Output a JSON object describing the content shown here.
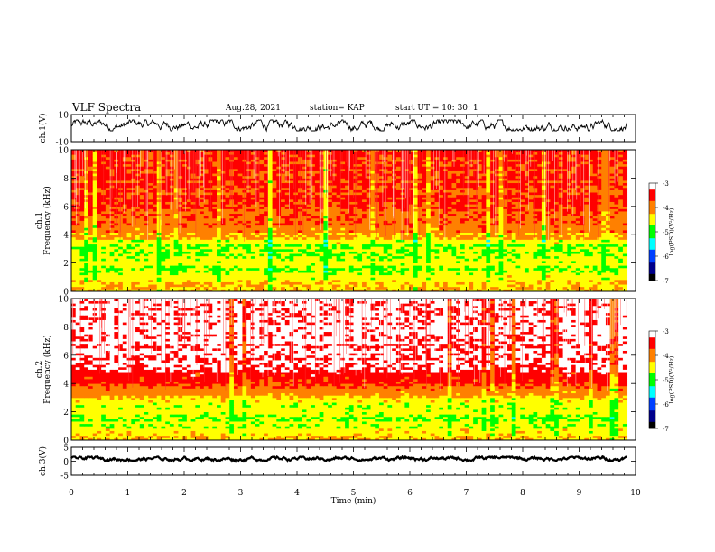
{
  "header": {
    "title": "VLF Spectra",
    "date": "Aug.28, 2021",
    "station": "station= KAP",
    "start": "start UT =   10: 30: 1"
  },
  "chart_data": [
    {
      "type": "line",
      "panel": "ch1-waveform",
      "ylabel": "ch.1(V)",
      "ylim": [
        -10,
        10
      ],
      "yticks": [
        "10",
        "-10"
      ],
      "xlim": [
        0,
        10
      ],
      "x_end": 9.85,
      "series": [
        {
          "name": "",
          "amplitude_range": [
            -2,
            6
          ],
          "mean": 2,
          "color": "#000000"
        }
      ]
    },
    {
      "type": "heatmap",
      "panel": "ch1-spectrogram",
      "ylabel": "ch.1\nFrequency (kHz)",
      "ylim": [
        0,
        10
      ],
      "yticks": [
        "0",
        "2",
        "4",
        "6",
        "8",
        "10"
      ],
      "xlim": [
        0,
        10
      ],
      "x_end": 9.85,
      "zlim": [
        -7,
        -3
      ],
      "colorbar_label": "log(PSD)(V²/Hz)",
      "colorbar_ticks": [
        "-3",
        "-4",
        "-5",
        "-6",
        "-7"
      ],
      "profile": [
        {
          "f": 0.0,
          "level": -4.4
        },
        {
          "f": 0.5,
          "level": -4.3
        },
        {
          "f": 1.0,
          "level": -4.5
        },
        {
          "f": 1.5,
          "level": -4.7
        },
        {
          "f": 2.0,
          "level": -4.5
        },
        {
          "f": 2.5,
          "level": -4.6
        },
        {
          "f": 3.0,
          "level": -4.8
        },
        {
          "f": 3.5,
          "level": -4.5
        },
        {
          "f": 4.0,
          "level": -4.1
        },
        {
          "f": 5.0,
          "level": -3.8
        },
        {
          "f": 6.0,
          "level": -3.7
        },
        {
          "f": 8.0,
          "level": -3.7
        },
        {
          "f": 10.0,
          "level": -3.7
        }
      ]
    },
    {
      "type": "heatmap",
      "panel": "ch2-spectrogram",
      "ylabel": "ch.2\nFrequency (kHz)",
      "ylim": [
        0,
        10
      ],
      "yticks": [
        "0",
        "2",
        "4",
        "6",
        "8",
        "10"
      ],
      "xlim": [
        0,
        10
      ],
      "x_end": 9.85,
      "zlim": [
        -7,
        -3
      ],
      "colorbar_label": "log(PSD)(V²/Hz)",
      "colorbar_ticks": [
        "-3",
        "-4",
        "-5",
        "-6",
        "-7"
      ],
      "profile": [
        {
          "f": 0.0,
          "level": -4.3
        },
        {
          "f": 0.5,
          "level": -4.4
        },
        {
          "f": 1.0,
          "level": -4.6
        },
        {
          "f": 1.5,
          "level": -4.7
        },
        {
          "f": 2.0,
          "level": -4.6
        },
        {
          "f": 2.5,
          "level": -4.6
        },
        {
          "f": 3.0,
          "level": -4.4
        },
        {
          "f": 3.5,
          "level": -3.9
        },
        {
          "f": 4.0,
          "level": -3.6
        },
        {
          "f": 5.0,
          "level": -3.3
        },
        {
          "f": 6.0,
          "level": -3.2
        },
        {
          "f": 8.0,
          "level": -3.1
        },
        {
          "f": 10.0,
          "level": -3.1
        }
      ]
    },
    {
      "type": "line",
      "panel": "ch3-waveform",
      "ylabel": "ch.3(V)",
      "ylim": [
        -5,
        5
      ],
      "yticks": [
        "5",
        "0",
        "-5"
      ],
      "xlim": [
        0,
        10
      ],
      "x_end": 9.85,
      "series": [
        {
          "name": "",
          "amplitude_range": [
            0.2,
            1.6
          ],
          "mean": 0.9,
          "color": "#000000"
        }
      ]
    }
  ],
  "x_axis": {
    "label": "Time (min)",
    "ticks": [
      "0",
      "1",
      "2",
      "3",
      "4",
      "5",
      "6",
      "7",
      "8",
      "9",
      "10"
    ]
  },
  "colormap": [
    "#000000",
    "#00008b",
    "#0040ff",
    "#00ffff",
    "#00ff00",
    "#ffff00",
    "#ff8000",
    "#ff0000",
    "#ffffff"
  ]
}
